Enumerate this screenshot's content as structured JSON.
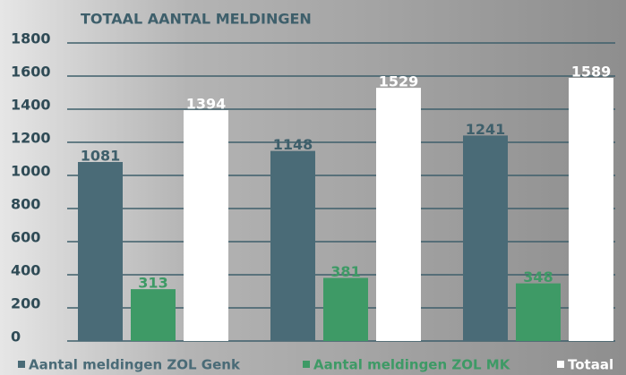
{
  "chart_data": {
    "type": "bar",
    "title": "TOTAAL AANTAL MELDINGEN",
    "categories": [
      null,
      null,
      null
    ],
    "series": [
      {
        "name": "Aantal meldingen ZOL Genk",
        "color": "#4a6b77",
        "values": [
          1081,
          1148,
          1241
        ]
      },
      {
        "name": "Aantal meldingen ZOL MK",
        "color": "#3e9a66",
        "values": [
          313,
          381,
          348
        ]
      },
      {
        "name": "Totaal",
        "color": "#ffffff",
        "values": [
          1394,
          1529,
          1589
        ]
      }
    ],
    "ylim": [
      0,
      1800
    ],
    "yticks": [
      0,
      200,
      400,
      600,
      800,
      1000,
      1200,
      1400,
      1600,
      1800
    ],
    "grid": true,
    "legend": "bottom"
  }
}
